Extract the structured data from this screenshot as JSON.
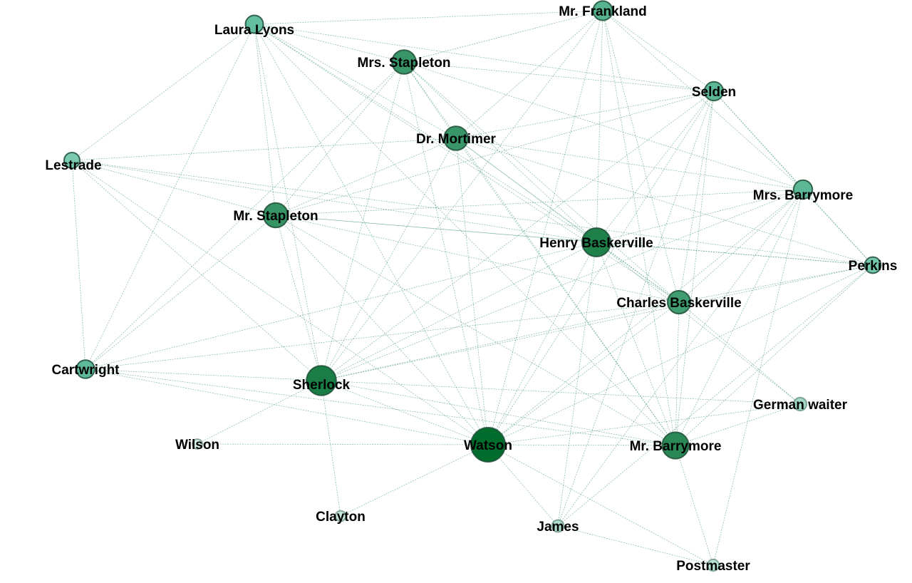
{
  "colors": {
    "background": "#ffffff",
    "edge": "#2e8b6a",
    "label": "#000000",
    "node_stroke": "#1f4f37",
    "node_fill_scale": [
      "#e6f4ee",
      "#66c2a4",
      "#2e8b5a",
      "#006d2c"
    ]
  },
  "graph": {
    "nodes": [
      {
        "id": "watson",
        "label": "Watson",
        "weight": 1.0
      },
      {
        "id": "sherlock",
        "label": "Sherlock",
        "weight": 0.82
      },
      {
        "id": "henry",
        "label": "Henry Baskerville",
        "weight": 0.78
      },
      {
        "id": "mr_barrymore",
        "label": "Mr. Barrymore",
        "weight": 0.7
      },
      {
        "id": "mr_stapleton",
        "label": "Mr. Stapleton",
        "weight": 0.62
      },
      {
        "id": "mrs_stapleton",
        "label": "Mrs. Stapleton",
        "weight": 0.6
      },
      {
        "id": "dr_mortimer",
        "label": "Dr. Mortimer",
        "weight": 0.6
      },
      {
        "id": "charles",
        "label": "Charles Baskerville",
        "weight": 0.56
      },
      {
        "id": "mr_frankland",
        "label": "Mr. Frankland",
        "weight": 0.42
      },
      {
        "id": "selden",
        "label": "Selden",
        "weight": 0.4
      },
      {
        "id": "mrs_barrymore",
        "label": "Mrs. Barrymore",
        "weight": 0.4
      },
      {
        "id": "laura_lyons",
        "label": "Laura Lyons",
        "weight": 0.36
      },
      {
        "id": "cartwright",
        "label": "Cartwright",
        "weight": 0.38
      },
      {
        "id": "perkins",
        "label": "Perkins",
        "weight": 0.3
      },
      {
        "id": "lestrade",
        "label": "Lestrade",
        "weight": 0.28
      },
      {
        "id": "german_waiter",
        "label": "German waiter",
        "weight": 0.18
      },
      {
        "id": "james",
        "label": "James",
        "weight": 0.14
      },
      {
        "id": "postmaster",
        "label": "Postmaster",
        "weight": 0.12
      },
      {
        "id": "clayton",
        "label": "Clayton",
        "weight": 0.08
      },
      {
        "id": "wilson",
        "label": "Wilson",
        "weight": 0.05
      }
    ],
    "edges": [
      [
        "watson",
        "sherlock"
      ],
      [
        "watson",
        "henry"
      ],
      [
        "watson",
        "mr_barrymore"
      ],
      [
        "watson",
        "mr_stapleton"
      ],
      [
        "watson",
        "mrs_stapleton"
      ],
      [
        "watson",
        "dr_mortimer"
      ],
      [
        "watson",
        "charles"
      ],
      [
        "watson",
        "mr_frankland"
      ],
      [
        "watson",
        "selden"
      ],
      [
        "watson",
        "mrs_barrymore"
      ],
      [
        "watson",
        "laura_lyons"
      ],
      [
        "watson",
        "cartwright"
      ],
      [
        "watson",
        "perkins"
      ],
      [
        "watson",
        "lestrade"
      ],
      [
        "watson",
        "german_waiter"
      ],
      [
        "watson",
        "james"
      ],
      [
        "watson",
        "postmaster"
      ],
      [
        "watson",
        "clayton"
      ],
      [
        "watson",
        "wilson"
      ],
      [
        "sherlock",
        "henry"
      ],
      [
        "sherlock",
        "mr_barrymore"
      ],
      [
        "sherlock",
        "mr_stapleton"
      ],
      [
        "sherlock",
        "mrs_stapleton"
      ],
      [
        "sherlock",
        "dr_mortimer"
      ],
      [
        "sherlock",
        "charles"
      ],
      [
        "sherlock",
        "mr_frankland"
      ],
      [
        "sherlock",
        "selden"
      ],
      [
        "sherlock",
        "mrs_barrymore"
      ],
      [
        "sherlock",
        "laura_lyons"
      ],
      [
        "sherlock",
        "cartwright"
      ],
      [
        "sherlock",
        "lestrade"
      ],
      [
        "sherlock",
        "german_waiter"
      ],
      [
        "sherlock",
        "clayton"
      ],
      [
        "sherlock",
        "wilson"
      ],
      [
        "sherlock",
        "perkins"
      ],
      [
        "henry",
        "mr_barrymore"
      ],
      [
        "henry",
        "mr_stapleton"
      ],
      [
        "henry",
        "mrs_stapleton"
      ],
      [
        "henry",
        "dr_mortimer"
      ],
      [
        "henry",
        "charles"
      ],
      [
        "henry",
        "mr_frankland"
      ],
      [
        "henry",
        "selden"
      ],
      [
        "henry",
        "mrs_barrymore"
      ],
      [
        "henry",
        "laura_lyons"
      ],
      [
        "henry",
        "perkins"
      ],
      [
        "henry",
        "cartwright"
      ],
      [
        "henry",
        "lestrade"
      ],
      [
        "henry",
        "german_waiter"
      ],
      [
        "henry",
        "james"
      ],
      [
        "mr_barrymore",
        "mr_stapleton"
      ],
      [
        "mr_barrymore",
        "mrs_stapleton"
      ],
      [
        "mr_barrymore",
        "dr_mortimer"
      ],
      [
        "mr_barrymore",
        "charles"
      ],
      [
        "mr_barrymore",
        "mr_frankland"
      ],
      [
        "mr_barrymore",
        "selden"
      ],
      [
        "mr_barrymore",
        "mrs_barrymore"
      ],
      [
        "mr_barrymore",
        "laura_lyons"
      ],
      [
        "mr_barrymore",
        "cartwright"
      ],
      [
        "mr_barrymore",
        "perkins"
      ],
      [
        "mr_barrymore",
        "postmaster"
      ],
      [
        "mr_barrymore",
        "german_waiter"
      ],
      [
        "mr_stapleton",
        "mrs_stapleton"
      ],
      [
        "mr_stapleton",
        "dr_mortimer"
      ],
      [
        "mr_stapleton",
        "charles"
      ],
      [
        "mr_stapleton",
        "laura_lyons"
      ],
      [
        "mr_stapleton",
        "lestrade"
      ],
      [
        "mr_stapleton",
        "cartwright"
      ],
      [
        "mr_stapleton",
        "mrs_barrymore"
      ],
      [
        "mr_stapleton",
        "selden"
      ],
      [
        "mr_stapleton",
        "perkins"
      ],
      [
        "mrs_stapleton",
        "dr_mortimer"
      ],
      [
        "mrs_stapleton",
        "charles"
      ],
      [
        "mrs_stapleton",
        "laura_lyons"
      ],
      [
        "mrs_stapleton",
        "selden"
      ],
      [
        "mrs_stapleton",
        "mrs_barrymore"
      ],
      [
        "mrs_stapleton",
        "cartwright"
      ],
      [
        "mrs_stapleton",
        "mr_frankland"
      ],
      [
        "dr_mortimer",
        "charles"
      ],
      [
        "dr_mortimer",
        "laura_lyons"
      ],
      [
        "dr_mortimer",
        "selden"
      ],
      [
        "dr_mortimer",
        "mrs_barrymore"
      ],
      [
        "dr_mortimer",
        "mr_frankland"
      ],
      [
        "dr_mortimer",
        "lestrade"
      ],
      [
        "dr_mortimer",
        "perkins"
      ],
      [
        "charles",
        "mr_frankland"
      ],
      [
        "charles",
        "selden"
      ],
      [
        "charles",
        "mrs_barrymore"
      ],
      [
        "charles",
        "laura_lyons"
      ],
      [
        "charles",
        "perkins"
      ],
      [
        "charles",
        "german_waiter"
      ],
      [
        "charles",
        "cartwright"
      ],
      [
        "mr_frankland",
        "selden"
      ],
      [
        "mr_frankland",
        "laura_lyons"
      ],
      [
        "mr_frankland",
        "mrs_barrymore"
      ],
      [
        "selden",
        "mrs_barrymore"
      ],
      [
        "selden",
        "perkins"
      ],
      [
        "selden",
        "laura_lyons"
      ],
      [
        "selden",
        "james"
      ],
      [
        "mrs_barrymore",
        "perkins"
      ],
      [
        "mrs_barrymore",
        "james"
      ],
      [
        "mrs_barrymore",
        "postmaster"
      ],
      [
        "laura_lyons",
        "lestrade"
      ],
      [
        "laura_lyons",
        "cartwright"
      ],
      [
        "lestrade",
        "cartwright"
      ],
      [
        "lestrade",
        "perkins"
      ],
      [
        "perkins",
        "james"
      ],
      [
        "james",
        "postmaster"
      ]
    ]
  }
}
